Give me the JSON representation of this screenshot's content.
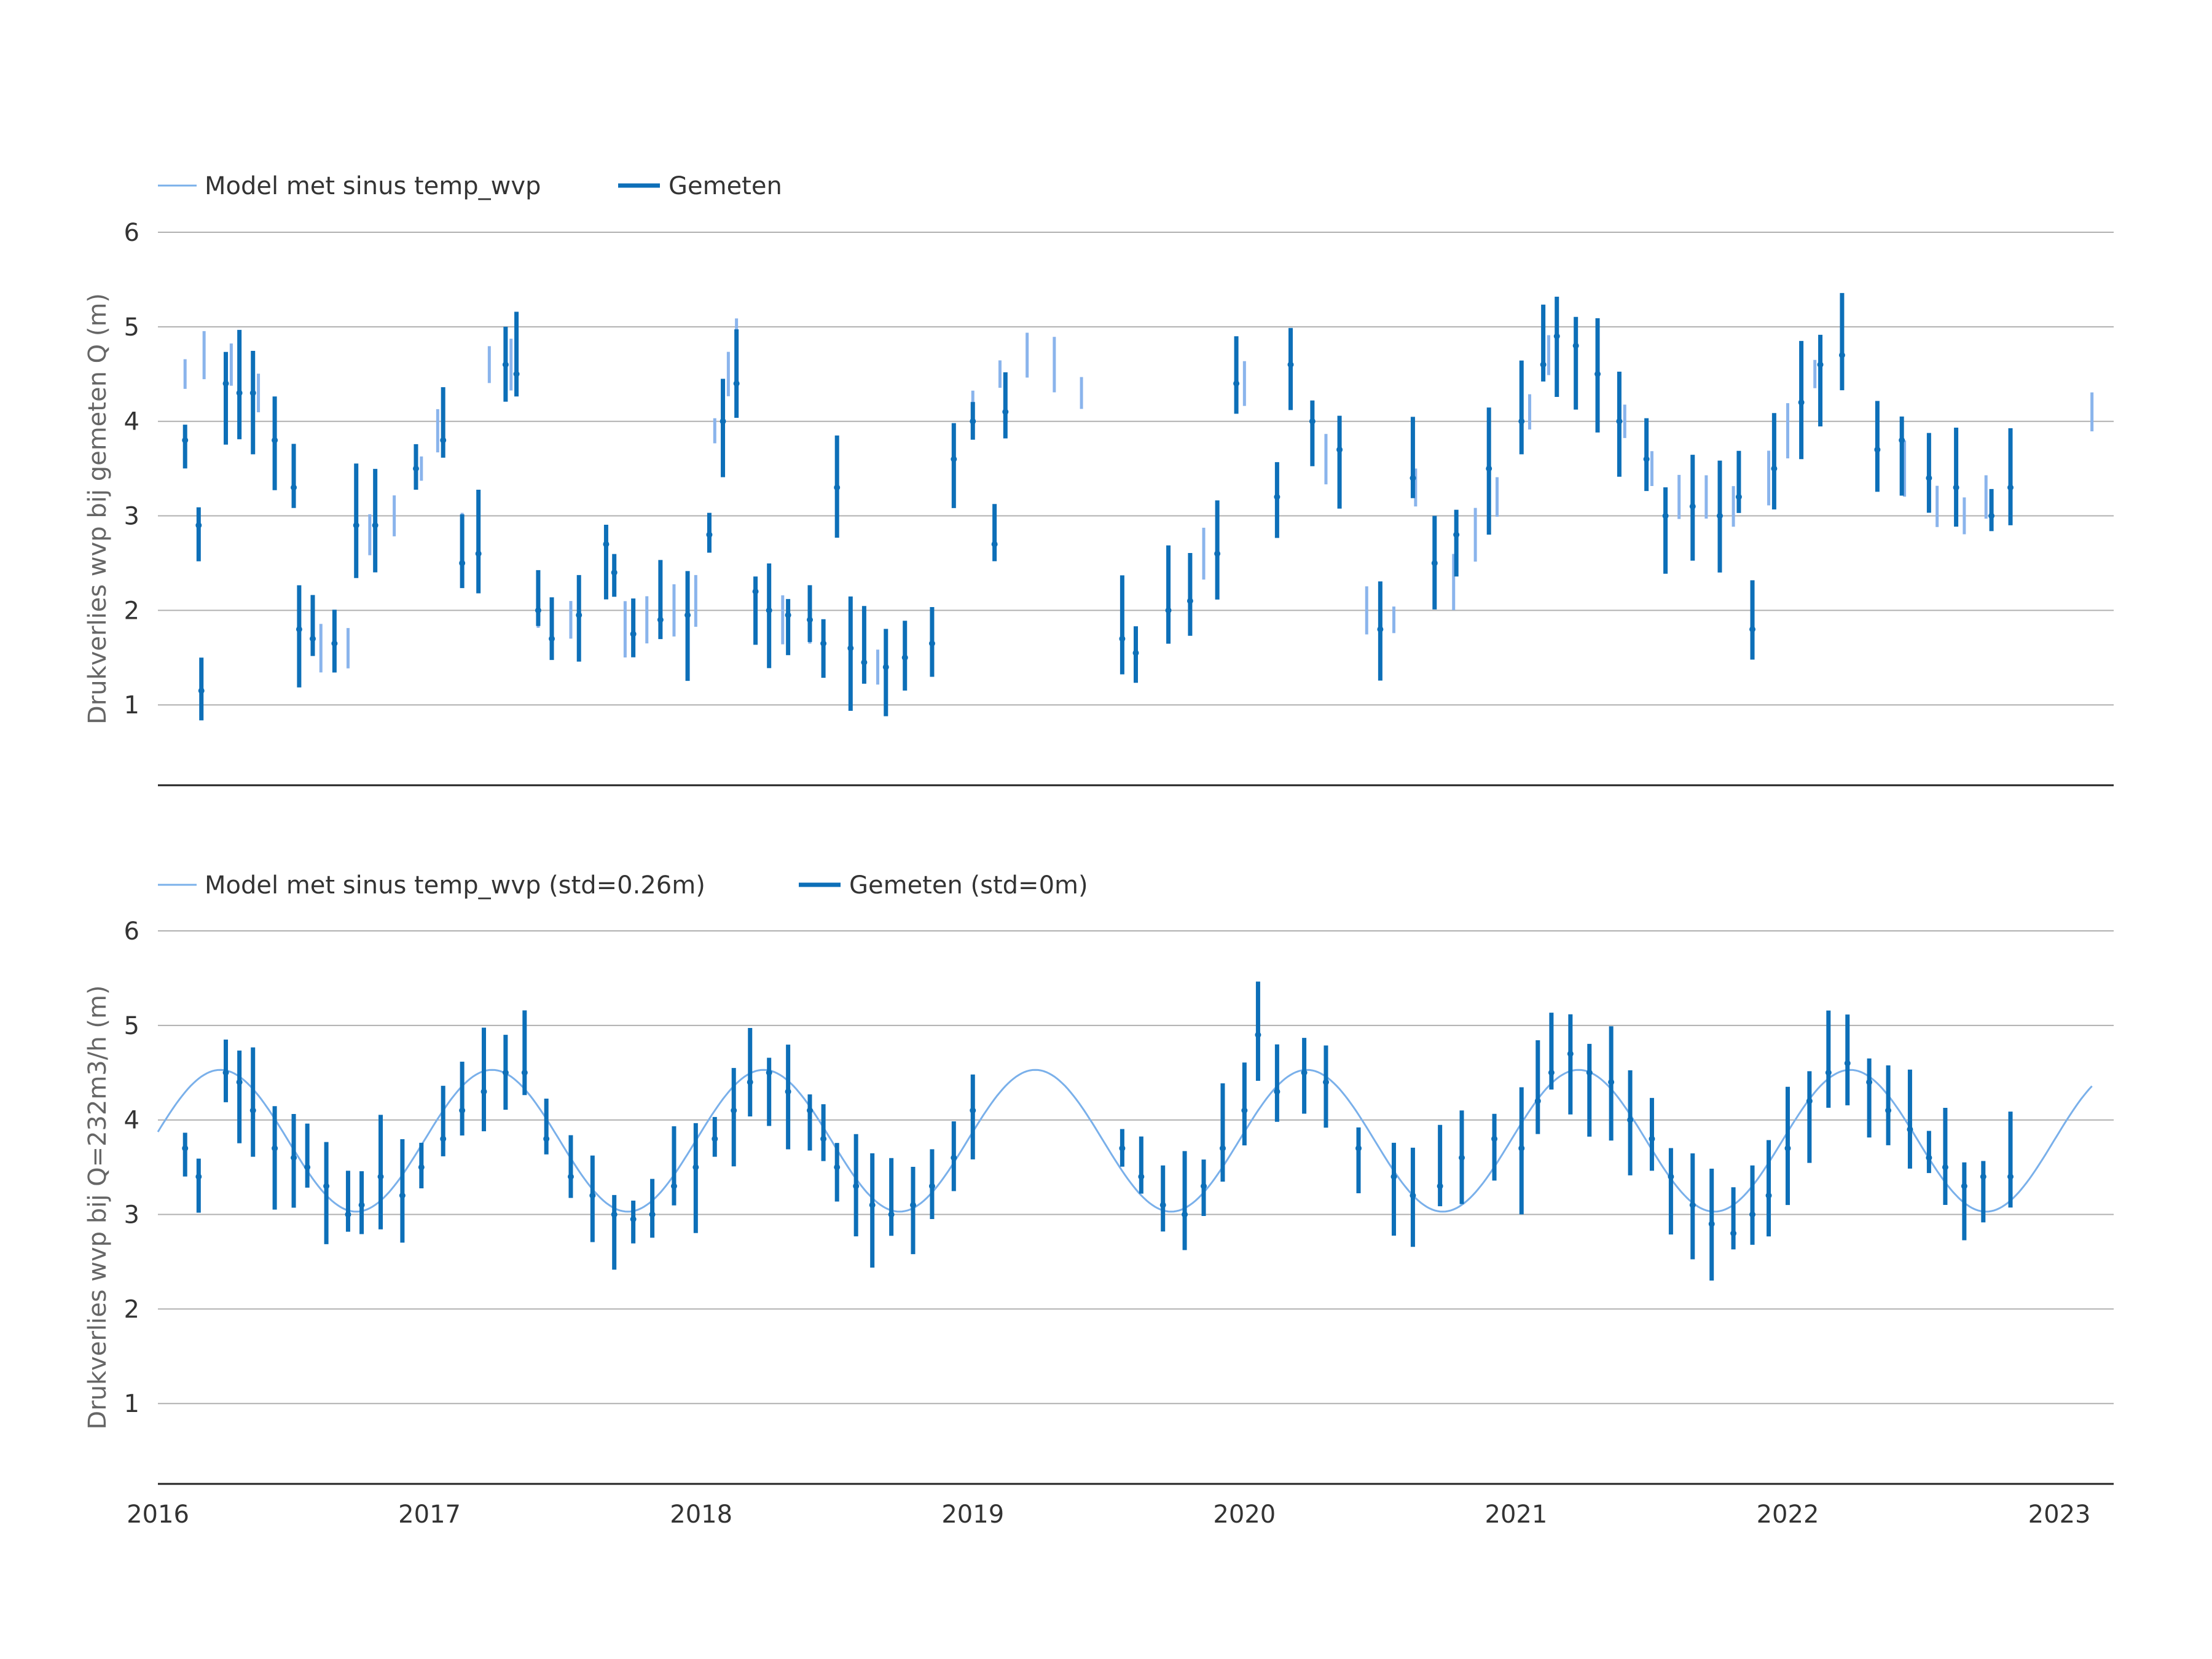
{
  "colors": {
    "model": "#8ab4ec",
    "model_line": "#7ab0ea",
    "measured": "#0d6fb8",
    "grid": "#b0b0b0",
    "axis": "#222222",
    "text": "#333333",
    "ylabel": "#666666"
  },
  "chart_data": [
    {
      "type": "line",
      "title": "",
      "xlabel": "",
      "ylabel": "Drukverlies wvp bij gemeten Q (m)",
      "xlim": [
        2016.0,
        2023.2
      ],
      "ylim": [
        0.15,
        6.0
      ],
      "yticks": [
        "1",
        "2",
        "3",
        "4",
        "5",
        "6"
      ],
      "grid": true,
      "legend_position": "top-left",
      "series": [
        {
          "name": "Model met sinus temp_wvp",
          "style": "band",
          "points": [
            [
              2016.1,
              4.5
            ],
            [
              2016.17,
              4.7
            ],
            [
              2016.27,
              4.6
            ],
            [
              2016.37,
              4.3
            ],
            [
              2016.43,
              3.9
            ],
            [
              2016.5,
              3.4
            ],
            [
              2016.6,
              1.6
            ],
            [
              2016.7,
              1.6
            ],
            [
              2016.78,
              2.8
            ],
            [
              2016.87,
              3.0
            ],
            [
              2016.97,
              3.5
            ],
            [
              2017.03,
              3.9
            ],
            [
              2017.12,
              2.8
            ],
            [
              2017.22,
              4.6
            ],
            [
              2017.3,
              4.6
            ],
            [
              2017.4,
              2.0
            ],
            [
              2017.52,
              1.9
            ],
            [
              2017.65,
              2.4
            ],
            [
              2017.72,
              1.8
            ],
            [
              2017.8,
              1.9
            ],
            [
              2017.9,
              2.0
            ],
            [
              2017.98,
              2.1
            ],
            [
              2018.05,
              3.9
            ],
            [
              2018.1,
              4.5
            ],
            [
              2018.13,
              4.8
            ],
            [
              2018.2,
              2.1
            ],
            [
              2018.3,
              1.9
            ],
            [
              2018.4,
              1.8
            ],
            [
              2018.5,
              3.3
            ],
            [
              2018.55,
              1.6
            ],
            [
              2018.65,
              1.4
            ],
            [
              2018.75,
              1.45
            ],
            [
              2018.85,
              1.55
            ],
            [
              2018.93,
              3.7
            ],
            [
              2019.0,
              4.1
            ],
            [
              2019.1,
              4.5
            ],
            [
              2019.2,
              4.7
            ],
            [
              2019.3,
              4.6
            ],
            [
              2019.4,
              4.3
            ],
            [
              2019.55,
              1.6
            ],
            [
              2019.72,
              2.0
            ],
            [
              2019.85,
              2.6
            ],
            [
              2020.0,
              4.4
            ],
            [
              2020.12,
              3.1
            ],
            [
              2020.17,
              4.7
            ],
            [
              2020.3,
              3.6
            ],
            [
              2020.45,
              2.0
            ],
            [
              2020.55,
              1.9
            ],
            [
              2020.63,
              3.3
            ],
            [
              2020.77,
              2.3
            ],
            [
              2020.85,
              2.8
            ],
            [
              2020.93,
              3.2
            ],
            [
              2021.05,
              4.1
            ],
            [
              2021.12,
              4.7
            ],
            [
              2021.22,
              4.8
            ],
            [
              2021.3,
              4.6
            ],
            [
              2021.4,
              4.0
            ],
            [
              2021.5,
              3.5
            ],
            [
              2021.6,
              3.2
            ],
            [
              2021.7,
              3.2
            ],
            [
              2021.8,
              3.1
            ],
            [
              2021.87,
              1.7
            ],
            [
              2021.93,
              3.4
            ],
            [
              2022.0,
              3.9
            ],
            [
              2022.1,
              4.5
            ],
            [
              2022.2,
              4.8
            ],
            [
              2022.33,
              3.7
            ],
            [
              2022.43,
              3.5
            ],
            [
              2022.55,
              3.1
            ],
            [
              2022.65,
              3.0
            ],
            [
              2022.73,
              3.2
            ],
            [
              2022.82,
              3.5
            ],
            [
              2023.12,
              4.1
            ]
          ]
        },
        {
          "name": "Gemeten",
          "style": "spikes",
          "points": [
            [
              2016.1,
              3.8
            ],
            [
              2016.15,
              2.9
            ],
            [
              2016.16,
              1.15
            ],
            [
              2016.25,
              4.4
            ],
            [
              2016.3,
              4.3
            ],
            [
              2016.35,
              4.3
            ],
            [
              2016.43,
              3.8
            ],
            [
              2016.5,
              3.3
            ],
            [
              2016.52,
              1.8
            ],
            [
              2016.57,
              1.7
            ],
            [
              2016.65,
              1.65
            ],
            [
              2016.73,
              2.9
            ],
            [
              2016.8,
              2.9
            ],
            [
              2016.95,
              3.5
            ],
            [
              2017.05,
              3.8
            ],
            [
              2017.12,
              2.5
            ],
            [
              2017.18,
              2.6
            ],
            [
              2017.28,
              4.6
            ],
            [
              2017.32,
              4.5
            ],
            [
              2017.4,
              2.0
            ],
            [
              2017.45,
              1.7
            ],
            [
              2017.55,
              1.95
            ],
            [
              2017.65,
              2.7
            ],
            [
              2017.68,
              2.4
            ],
            [
              2017.75,
              1.75
            ],
            [
              2017.85,
              1.9
            ],
            [
              2017.95,
              1.95
            ],
            [
              2018.03,
              2.8
            ],
            [
              2018.08,
              4.0
            ],
            [
              2018.13,
              4.4
            ],
            [
              2018.2,
              2.2
            ],
            [
              2018.25,
              2.0
            ],
            [
              2018.32,
              1.95
            ],
            [
              2018.4,
              1.9
            ],
            [
              2018.45,
              1.65
            ],
            [
              2018.5,
              3.3
            ],
            [
              2018.55,
              1.6
            ],
            [
              2018.6,
              1.45
            ],
            [
              2018.68,
              1.4
            ],
            [
              2018.75,
              1.5
            ],
            [
              2018.85,
              1.65
            ],
            [
              2018.93,
              3.6
            ],
            [
              2019.0,
              4.0
            ],
            [
              2019.08,
              2.7
            ],
            [
              2019.12,
              4.1
            ],
            [
              2019.55,
              1.7
            ],
            [
              2019.6,
              1.55
            ],
            [
              2019.72,
              2.0
            ],
            [
              2019.8,
              2.1
            ],
            [
              2019.9,
              2.6
            ],
            [
              2019.97,
              4.4
            ],
            [
              2020.12,
              3.2
            ],
            [
              2020.17,
              4.6
            ],
            [
              2020.25,
              4.0
            ],
            [
              2020.35,
              3.7
            ],
            [
              2020.5,
              1.8
            ],
            [
              2020.62,
              3.4
            ],
            [
              2020.7,
              2.5
            ],
            [
              2020.78,
              2.8
            ],
            [
              2020.9,
              3.5
            ],
            [
              2021.02,
              4.0
            ],
            [
              2021.1,
              4.6
            ],
            [
              2021.15,
              4.9
            ],
            [
              2021.22,
              4.8
            ],
            [
              2021.3,
              4.5
            ],
            [
              2021.38,
              4.0
            ],
            [
              2021.48,
              3.6
            ],
            [
              2021.55,
              3.0
            ],
            [
              2021.65,
              3.1
            ],
            [
              2021.75,
              3.0
            ],
            [
              2021.82,
              3.2
            ],
            [
              2021.87,
              1.8
            ],
            [
              2021.95,
              3.5
            ],
            [
              2022.05,
              4.2
            ],
            [
              2022.12,
              4.6
            ],
            [
              2022.2,
              4.7
            ],
            [
              2022.33,
              3.7
            ],
            [
              2022.42,
              3.8
            ],
            [
              2022.52,
              3.4
            ],
            [
              2022.62,
              3.3
            ],
            [
              2022.75,
              3.0
            ],
            [
              2022.82,
              3.3
            ]
          ]
        }
      ]
    },
    {
      "type": "line",
      "title": "",
      "xlabel": "",
      "ylabel": "Drukverlies wvp bij Q=232m3/h (m)",
      "xlim": [
        2016.0,
        2023.2
      ],
      "ylim": [
        0.15,
        6.0
      ],
      "xticks": [
        "2016",
        "2017",
        "2018",
        "2019",
        "2020",
        "2021",
        "2022",
        "2023"
      ],
      "yticks": [
        "1",
        "2",
        "3",
        "4",
        "5",
        "6"
      ],
      "grid": true,
      "legend_position": "top-left",
      "model_sinus": {
        "mean": 3.78,
        "amplitude": 0.75,
        "peak_at": 2016.23,
        "period": 1.0,
        "x_range": [
          2016.0,
          2023.12
        ]
      },
      "series": [
        {
          "name": "Model met sinus temp_wvp (std=0.26m)",
          "style": "line"
        },
        {
          "name": "Gemeten (std=0m)",
          "style": "spikes",
          "points": [
            [
              2016.1,
              3.7
            ],
            [
              2016.15,
              3.4
            ],
            [
              2016.25,
              4.5
            ],
            [
              2016.3,
              4.4
            ],
            [
              2016.35,
              4.1
            ],
            [
              2016.43,
              3.7
            ],
            [
              2016.5,
              3.6
            ],
            [
              2016.55,
              3.5
            ],
            [
              2016.62,
              3.3
            ],
            [
              2016.7,
              3.0
            ],
            [
              2016.75,
              3.1
            ],
            [
              2016.82,
              3.4
            ],
            [
              2016.9,
              3.2
            ],
            [
              2016.97,
              3.5
            ],
            [
              2017.05,
              3.8
            ],
            [
              2017.12,
              4.1
            ],
            [
              2017.2,
              4.3
            ],
            [
              2017.28,
              4.5
            ],
            [
              2017.35,
              4.5
            ],
            [
              2017.43,
              3.8
            ],
            [
              2017.52,
              3.4
            ],
            [
              2017.6,
              3.2
            ],
            [
              2017.68,
              3.0
            ],
            [
              2017.75,
              2.95
            ],
            [
              2017.82,
              3.0
            ],
            [
              2017.9,
              3.3
            ],
            [
              2017.98,
              3.5
            ],
            [
              2018.05,
              3.8
            ],
            [
              2018.12,
              4.1
            ],
            [
              2018.18,
              4.4
            ],
            [
              2018.25,
              4.5
            ],
            [
              2018.32,
              4.3
            ],
            [
              2018.4,
              4.1
            ],
            [
              2018.45,
              3.8
            ],
            [
              2018.5,
              3.5
            ],
            [
              2018.57,
              3.3
            ],
            [
              2018.63,
              3.1
            ],
            [
              2018.7,
              3.0
            ],
            [
              2018.78,
              3.1
            ],
            [
              2018.85,
              3.3
            ],
            [
              2018.93,
              3.6
            ],
            [
              2019.0,
              4.1
            ],
            [
              2019.55,
              3.7
            ],
            [
              2019.62,
              3.4
            ],
            [
              2019.7,
              3.1
            ],
            [
              2019.78,
              3.0
            ],
            [
              2019.85,
              3.3
            ],
            [
              2019.92,
              3.7
            ],
            [
              2020.0,
              4.1
            ],
            [
              2020.05,
              4.9
            ],
            [
              2020.12,
              4.3
            ],
            [
              2020.22,
              4.5
            ],
            [
              2020.3,
              4.4
            ],
            [
              2020.42,
              3.7
            ],
            [
              2020.55,
              3.4
            ],
            [
              2020.62,
              3.2
            ],
            [
              2020.72,
              3.3
            ],
            [
              2020.8,
              3.6
            ],
            [
              2020.92,
              3.8
            ],
            [
              2021.02,
              3.7
            ],
            [
              2021.08,
              4.2
            ],
            [
              2021.13,
              4.5
            ],
            [
              2021.2,
              4.7
            ],
            [
              2021.27,
              4.5
            ],
            [
              2021.35,
              4.4
            ],
            [
              2021.42,
              4.0
            ],
            [
              2021.5,
              3.8
            ],
            [
              2021.57,
              3.4
            ],
            [
              2021.65,
              3.1
            ],
            [
              2021.72,
              2.9
            ],
            [
              2021.8,
              2.8
            ],
            [
              2021.87,
              3.0
            ],
            [
              2021.93,
              3.2
            ],
            [
              2022.0,
              3.7
            ],
            [
              2022.08,
              4.2
            ],
            [
              2022.15,
              4.5
            ],
            [
              2022.22,
              4.6
            ],
            [
              2022.3,
              4.4
            ],
            [
              2022.37,
              4.1
            ],
            [
              2022.45,
              3.9
            ],
            [
              2022.52,
              3.6
            ],
            [
              2022.58,
              3.5
            ],
            [
              2022.65,
              3.3
            ],
            [
              2022.72,
              3.4
            ],
            [
              2022.82,
              3.4
            ]
          ]
        }
      ]
    }
  ]
}
